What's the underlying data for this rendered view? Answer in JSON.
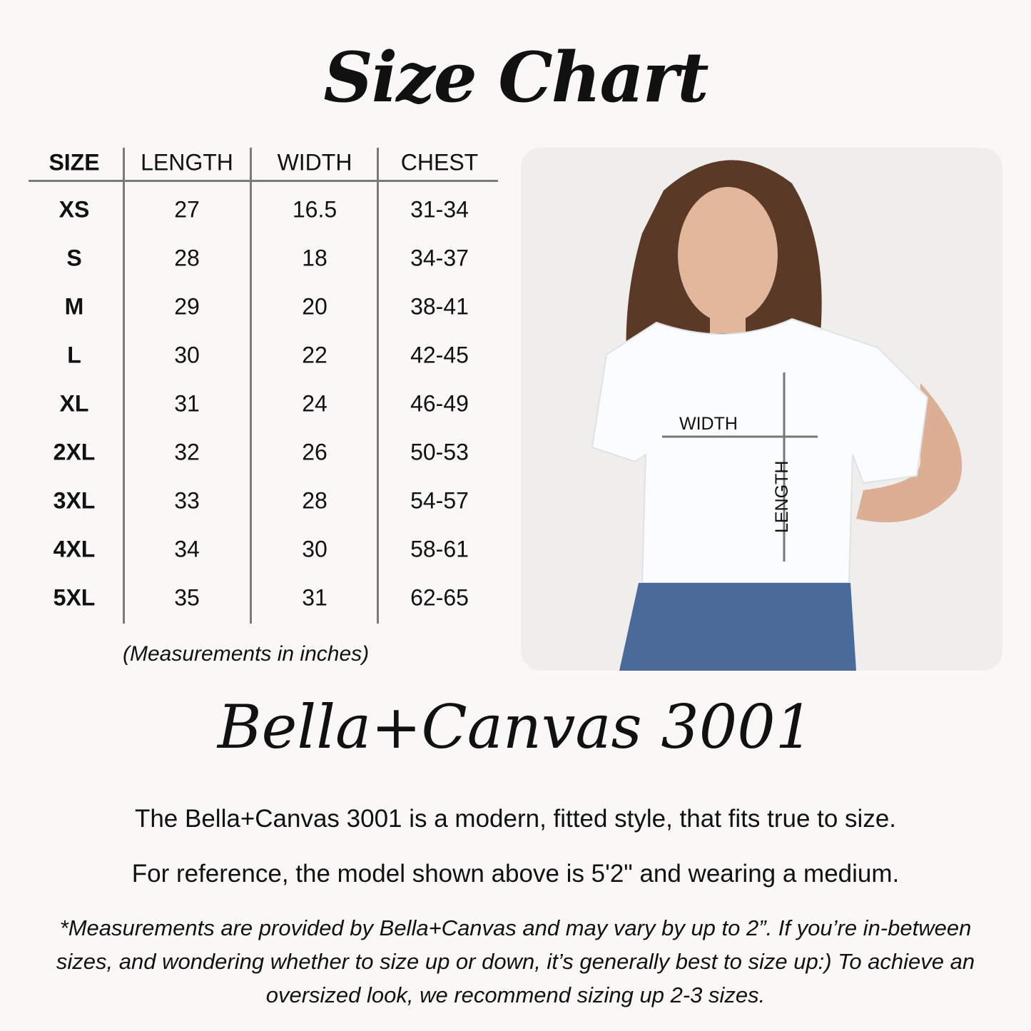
{
  "title": "Size Chart",
  "table": {
    "headers": [
      "SIZE",
      "LENGTH",
      "WIDTH",
      "CHEST"
    ],
    "rows": [
      [
        "XS",
        "27",
        "16.5",
        "31-34"
      ],
      [
        "S",
        "28",
        "18",
        "34-37"
      ],
      [
        "M",
        "29",
        "20",
        "38-41"
      ],
      [
        "L",
        "30",
        "22",
        "42-45"
      ],
      [
        "XL",
        "31",
        "24",
        "46-49"
      ],
      [
        "2XL",
        "32",
        "26",
        "50-53"
      ],
      [
        "3XL",
        "33",
        "28",
        "54-57"
      ],
      [
        "4XL",
        "34",
        "30",
        "58-61"
      ],
      [
        "5XL",
        "35",
        "31",
        "62-65"
      ]
    ],
    "units_note": "(Measurements in inches)"
  },
  "photo": {
    "width_label": "WIDTH",
    "length_label": "LENGTH"
  },
  "brand": "Bella+Canvas 3001",
  "description": [
    "The Bella+Canvas 3001 is a modern, fitted style, that fits true to size.",
    "For reference, the model shown above is 5'2\" and wearing a medium."
  ],
  "footnote": "*Measurements are provided by Bella+Canvas and may vary by up to 2”. If you’re in-between sizes, and wondering whether to size up or down, it’s generally best to size up:) To achieve an oversized look, we recommend sizing up 2-3 sizes."
}
